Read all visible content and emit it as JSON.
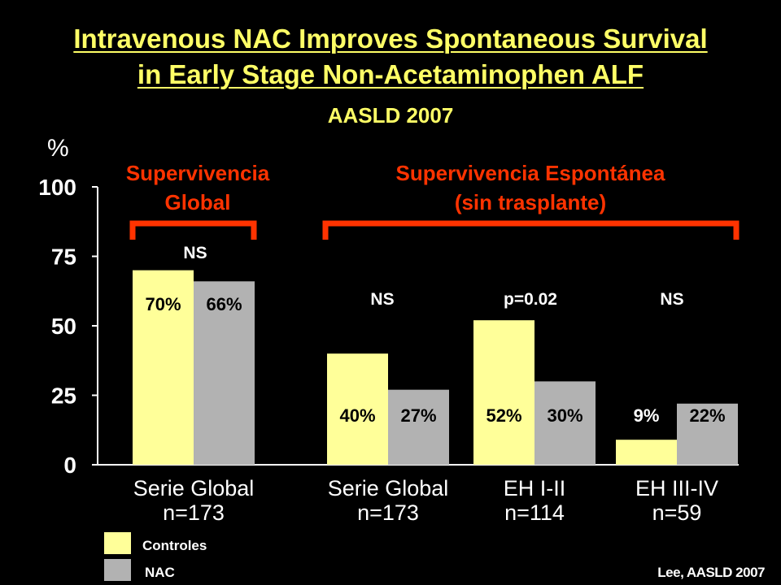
{
  "slide": {
    "title_line1": "Intravenous NAC Improves Spontaneous Survival",
    "title_line2": "in Early Stage Non-Acetaminophen ALF",
    "subtitle": "AASLD 2007",
    "source": "Lee, AASLD 2007"
  },
  "colors": {
    "controles": "#ffff99",
    "nac": "#b2b2b2",
    "accent": "#ff3300",
    "title": "#ffff66"
  },
  "chart_data": {
    "type": "bar",
    "ylabel": "%",
    "ylim": [
      0,
      100
    ],
    "yticks": [
      0,
      25,
      50,
      75,
      100
    ],
    "categories": [
      {
        "line1": "Serie Global",
        "line2": "n=173"
      },
      {
        "line1": "Serie Global",
        "line2": "n=173"
      },
      {
        "line1": "EH I-II",
        "line2": "n=114"
      },
      {
        "line1": "EH III-IV",
        "line2": "n=59"
      }
    ],
    "series": [
      {
        "name": "Controles",
        "values": [
          70,
          40,
          52,
          9
        ],
        "labels": [
          "70%",
          "40%",
          "52%",
          "9%"
        ]
      },
      {
        "name": "NAC",
        "values": [
          66,
          27,
          30,
          22
        ],
        "labels": [
          "66%",
          "27%",
          "30%",
          "22%"
        ]
      }
    ],
    "significance": [
      "NS",
      "NS",
      "p=0.02",
      "NS"
    ],
    "groups": [
      {
        "line1": "Supervivencia",
        "line2": "Global"
      },
      {
        "line1": "Supervivencia Espontánea",
        "line2": "(sin trasplante)"
      }
    ],
    "legend": [
      "Controles",
      "NAC"
    ],
    "legend_position": "bottom-left",
    "grid": false
  }
}
